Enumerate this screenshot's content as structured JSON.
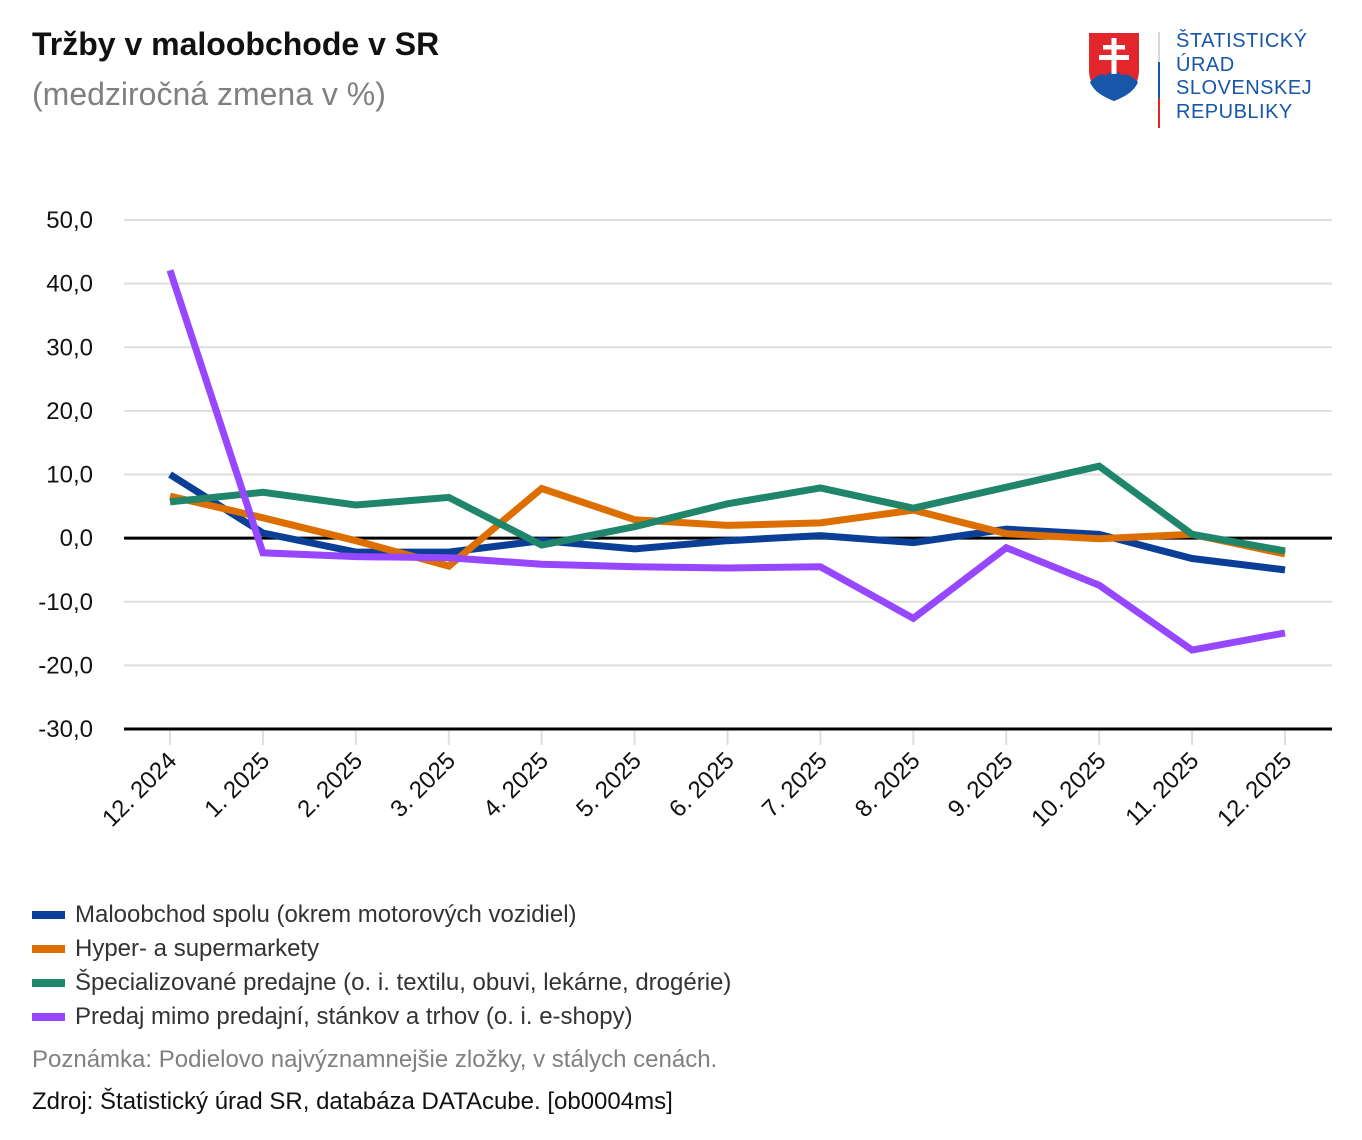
{
  "header": {
    "title": "Tržby v maloobchode v SR",
    "subtitle": "(medziročná zmena v %)"
  },
  "logo": {
    "lines": [
      "ŠTATISTICKÝ",
      "ÚRAD",
      "SLOVENSKEJ",
      "REPUBLIKY"
    ],
    "icon": "slovak-coat-of-arms-icon",
    "colors": {
      "blue": "#1756a9",
      "red": "#e3262c"
    }
  },
  "chart_data": {
    "type": "line",
    "title": "Tržby v maloobchode v SR",
    "subtitle": "(medziročná zmena v %)",
    "xlabel": "",
    "ylabel": "",
    "categories": [
      "12. 2024",
      "1. 2025",
      "2. 2025",
      "3. 2025",
      "4. 2025",
      "5. 2025",
      "6. 2025",
      "7. 2025",
      "8. 2025",
      "9. 2025",
      "10. 2025",
      "11. 2025",
      "12. 2025"
    ],
    "ylim": [
      -30,
      50
    ],
    "yticks": [
      50,
      40,
      30,
      20,
      10,
      0,
      -10,
      -20,
      -30
    ],
    "ytick_labels": [
      "50,0",
      "40,0",
      "30,0",
      "20,0",
      "10,0",
      "0,0",
      "-10,0",
      "-20,0",
      "-30,0"
    ],
    "grid": true,
    "legend_position": "bottom-left",
    "series": [
      {
        "name": "Maloobchod spolu (okrem motorových vozidiel)",
        "color": "#0b3f97",
        "values": [
          10.0,
          0.8,
          -2.2,
          -2.2,
          -0.4,
          -1.7,
          -0.4,
          0.4,
          -0.7,
          1.4,
          0.6,
          -3.2,
          -5.0
        ]
      },
      {
        "name": "Hyper- a supermarkety",
        "color": "#dc6f00",
        "values": [
          6.6,
          3.2,
          -0.4,
          -4.4,
          7.8,
          2.9,
          2.0,
          2.4,
          4.4,
          0.7,
          -0.1,
          0.6,
          -2.5
        ]
      },
      {
        "name": "Špecializované predajne (o. i. textilu, obuvi, lekárne, drogérie)",
        "color": "#1f856b",
        "values": [
          5.7,
          7.2,
          5.2,
          6.4,
          -1.1,
          1.8,
          5.4,
          7.9,
          4.7,
          8.0,
          11.3,
          0.6,
          -2.0
        ]
      },
      {
        "name": "Predaj mimo predajní, stánkov a trhov (o. i. e-shopy)",
        "color": "#9747ff",
        "values": [
          42.1,
          -2.3,
          -2.9,
          -3.1,
          -4.1,
          -4.5,
          -4.7,
          -4.5,
          -12.6,
          -1.5,
          -7.4,
          -17.6,
          -14.9
        ]
      }
    ]
  },
  "footer": {
    "note": "Poznámka: Podielovo najvýznamnejšie zložky, v stálych cenách.",
    "source": "Zdroj: Štatistický úrad SR, databáza DATAcube. [ob0004ms]"
  }
}
